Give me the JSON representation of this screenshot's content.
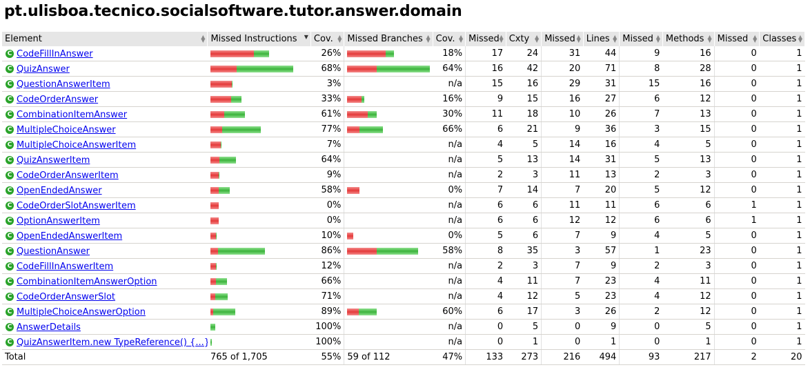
{
  "title": "pt.ulisboa.tecnico.socialsoftware.tutor.answer.domain",
  "columns": [
    "Element",
    "Missed Instructions",
    "Cov.",
    "Missed Branches",
    "Cov.",
    "Missed",
    "Cxty",
    "Missed",
    "Lines",
    "Missed",
    "Methods",
    "Missed",
    "Classes"
  ],
  "icons": {
    "class_icon": "class-c-icon",
    "sort_icon": "sort-arrows-icon"
  },
  "colors": {
    "missed": "#e43a3a",
    "covered": "#3cb43c",
    "link": "#0000ee",
    "header_bg": "#e6e6e6"
  },
  "rows": [
    {
      "name": "CodeFillInAnswer",
      "instr_missed_frac": 0.74,
      "instr_covered_frac": 0.26,
      "instr_cov": "26%",
      "br_missed_frac": 0.82,
      "br_covered_frac": 0.18,
      "br_cov": "18%",
      "cx_missed": "17",
      "cxty": "24",
      "ln_missed": "31",
      "lines": "44",
      "m_missed": "9",
      "methods": "16",
      "c_missed": "0",
      "classes": "1"
    },
    {
      "name": "QuizAnswer",
      "instr_missed_frac": 0.32,
      "instr_covered_frac": 0.68,
      "instr_cov": "68%",
      "br_missed_frac": 0.36,
      "br_covered_frac": 0.64,
      "br_cov": "64%",
      "cx_missed": "16",
      "cxty": "42",
      "ln_missed": "20",
      "lines": "71",
      "m_missed": "8",
      "methods": "28",
      "c_missed": "0",
      "classes": "1"
    },
    {
      "name": "QuestionAnswerItem",
      "instr_missed_frac": 0.97,
      "instr_covered_frac": 0.03,
      "instr_cov": "3%",
      "br_missed_frac": 0,
      "br_covered_frac": 0,
      "br_cov": "n/a",
      "cx_missed": "15",
      "cxty": "16",
      "ln_missed": "29",
      "lines": "31",
      "m_missed": "15",
      "methods": "16",
      "c_missed": "0",
      "classes": "1"
    },
    {
      "name": "CodeOrderAnswer",
      "instr_missed_frac": 0.67,
      "instr_covered_frac": 0.33,
      "instr_cov": "33%",
      "br_missed_frac": 0.84,
      "br_covered_frac": 0.16,
      "br_cov": "16%",
      "cx_missed": "9",
      "cxty": "15",
      "ln_missed": "16",
      "lines": "27",
      "m_missed": "6",
      "methods": "12",
      "c_missed": "0",
      "classes": "1"
    },
    {
      "name": "CombinationItemAnswer",
      "instr_missed_frac": 0.39,
      "instr_covered_frac": 0.61,
      "instr_cov": "61%",
      "br_missed_frac": 0.7,
      "br_covered_frac": 0.3,
      "br_cov": "30%",
      "cx_missed": "11",
      "cxty": "18",
      "ln_missed": "10",
      "lines": "26",
      "m_missed": "7",
      "methods": "13",
      "c_missed": "0",
      "classes": "1"
    },
    {
      "name": "MultipleChoiceAnswer",
      "instr_missed_frac": 0.23,
      "instr_covered_frac": 0.77,
      "instr_cov": "77%",
      "br_missed_frac": 0.34,
      "br_covered_frac": 0.66,
      "br_cov": "66%",
      "cx_missed": "6",
      "cxty": "21",
      "ln_missed": "9",
      "lines": "36",
      "m_missed": "3",
      "methods": "15",
      "c_missed": "0",
      "classes": "1"
    },
    {
      "name": "MultipleChoiceAnswerItem",
      "instr_missed_frac": 0.93,
      "instr_covered_frac": 0.07,
      "instr_cov": "7%",
      "br_missed_frac": 0,
      "br_covered_frac": 0,
      "br_cov": "n/a",
      "cx_missed": "4",
      "cxty": "5",
      "ln_missed": "14",
      "lines": "16",
      "m_missed": "4",
      "methods": "5",
      "c_missed": "0",
      "classes": "1"
    },
    {
      "name": "QuizAnswerItem",
      "instr_missed_frac": 0.36,
      "instr_covered_frac": 0.64,
      "instr_cov": "64%",
      "br_missed_frac": 0,
      "br_covered_frac": 0,
      "br_cov": "n/a",
      "cx_missed": "5",
      "cxty": "13",
      "ln_missed": "14",
      "lines": "31",
      "m_missed": "5",
      "methods": "13",
      "c_missed": "0",
      "classes": "1"
    },
    {
      "name": "CodeOrderAnswerItem",
      "instr_missed_frac": 0.91,
      "instr_covered_frac": 0.09,
      "instr_cov": "9%",
      "br_missed_frac": 0,
      "br_covered_frac": 0,
      "br_cov": "n/a",
      "cx_missed": "2",
      "cxty": "3",
      "ln_missed": "11",
      "lines": "13",
      "m_missed": "2",
      "methods": "3",
      "c_missed": "0",
      "classes": "1"
    },
    {
      "name": "OpenEndedAnswer",
      "instr_missed_frac": 0.42,
      "instr_covered_frac": 0.58,
      "instr_cov": "58%",
      "br_missed_frac": 1,
      "br_covered_frac": 0,
      "br_cov": "0%",
      "cx_missed": "7",
      "cxty": "14",
      "ln_missed": "7",
      "lines": "20",
      "m_missed": "5",
      "methods": "12",
      "c_missed": "0",
      "classes": "1"
    },
    {
      "name": "CodeOrderSlotAnswerItem",
      "instr_missed_frac": 1,
      "instr_covered_frac": 0,
      "instr_cov": "0%",
      "br_missed_frac": 0,
      "br_covered_frac": 0,
      "br_cov": "n/a",
      "cx_missed": "6",
      "cxty": "6",
      "ln_missed": "11",
      "lines": "11",
      "m_missed": "6",
      "methods": "6",
      "c_missed": "1",
      "classes": "1"
    },
    {
      "name": "OptionAnswerItem",
      "instr_missed_frac": 1,
      "instr_covered_frac": 0,
      "instr_cov": "0%",
      "br_missed_frac": 0,
      "br_covered_frac": 0,
      "br_cov": "n/a",
      "cx_missed": "6",
      "cxty": "6",
      "ln_missed": "12",
      "lines": "12",
      "m_missed": "6",
      "methods": "6",
      "c_missed": "1",
      "classes": "1"
    },
    {
      "name": "OpenEndedAnswerItem",
      "instr_missed_frac": 0.9,
      "instr_covered_frac": 0.1,
      "instr_cov": "10%",
      "br_missed_frac": 1,
      "br_covered_frac": 0,
      "br_cov": "0%",
      "cx_missed": "5",
      "cxty": "6",
      "ln_missed": "7",
      "lines": "9",
      "m_missed": "4",
      "methods": "5",
      "c_missed": "0",
      "classes": "1"
    },
    {
      "name": "QuestionAnswer",
      "instr_missed_frac": 0.14,
      "instr_covered_frac": 0.86,
      "instr_cov": "86%",
      "br_missed_frac": 0.42,
      "br_covered_frac": 0.58,
      "br_cov": "58%",
      "cx_missed": "8",
      "cxty": "35",
      "ln_missed": "3",
      "lines": "57",
      "m_missed": "1",
      "methods": "23",
      "c_missed": "0",
      "classes": "1"
    },
    {
      "name": "CodeFillInAnswerItem",
      "instr_missed_frac": 0.88,
      "instr_covered_frac": 0.12,
      "instr_cov": "12%",
      "br_missed_frac": 0,
      "br_covered_frac": 0,
      "br_cov": "n/a",
      "cx_missed": "2",
      "cxty": "3",
      "ln_missed": "7",
      "lines": "9",
      "m_missed": "2",
      "methods": "3",
      "c_missed": "0",
      "classes": "1"
    },
    {
      "name": "CombinationItemAnswerOption",
      "instr_missed_frac": 0.34,
      "instr_covered_frac": 0.66,
      "instr_cov": "66%",
      "br_missed_frac": 0,
      "br_covered_frac": 0,
      "br_cov": "n/a",
      "cx_missed": "4",
      "cxty": "11",
      "ln_missed": "7",
      "lines": "23",
      "m_missed": "4",
      "methods": "11",
      "c_missed": "0",
      "classes": "1"
    },
    {
      "name": "CodeOrderAnswerSlot",
      "instr_missed_frac": 0.29,
      "instr_covered_frac": 0.71,
      "instr_cov": "71%",
      "br_missed_frac": 0,
      "br_covered_frac": 0,
      "br_cov": "n/a",
      "cx_missed": "4",
      "cxty": "12",
      "ln_missed": "5",
      "lines": "23",
      "m_missed": "4",
      "methods": "12",
      "c_missed": "0",
      "classes": "1"
    },
    {
      "name": "MultipleChoiceAnswerOption",
      "instr_missed_frac": 0.11,
      "instr_covered_frac": 0.89,
      "instr_cov": "89%",
      "br_missed_frac": 0.4,
      "br_covered_frac": 0.6,
      "br_cov": "60%",
      "cx_missed": "6",
      "cxty": "17",
      "ln_missed": "3",
      "lines": "26",
      "m_missed": "2",
      "methods": "12",
      "c_missed": "0",
      "classes": "1"
    },
    {
      "name": "AnswerDetails",
      "instr_missed_frac": 0,
      "instr_covered_frac": 1,
      "instr_cov": "100%",
      "br_missed_frac": 0,
      "br_covered_frac": 0,
      "br_cov": "n/a",
      "cx_missed": "0",
      "cxty": "5",
      "ln_missed": "0",
      "lines": "9",
      "m_missed": "0",
      "methods": "5",
      "c_missed": "0",
      "classes": "1"
    },
    {
      "name": "QuizAnswerItem.new TypeReference() {...}",
      "instr_missed_frac": 0,
      "instr_covered_frac": 1,
      "instr_cov": "100%",
      "br_missed_frac": 0,
      "br_covered_frac": 0,
      "br_cov": "n/a",
      "cx_missed": "0",
      "cxty": "1",
      "ln_missed": "0",
      "lines": "1",
      "m_missed": "0",
      "methods": "1",
      "c_missed": "0",
      "classes": "1"
    }
  ],
  "total": {
    "label": "Total",
    "instr": "765 of 1,705",
    "instr_cov": "55%",
    "br": "59 of 112",
    "br_cov": "47%",
    "cx_missed": "133",
    "cxty": "273",
    "ln_missed": "216",
    "lines": "494",
    "m_missed": "93",
    "methods": "217",
    "c_missed": "2",
    "classes": "20"
  }
}
